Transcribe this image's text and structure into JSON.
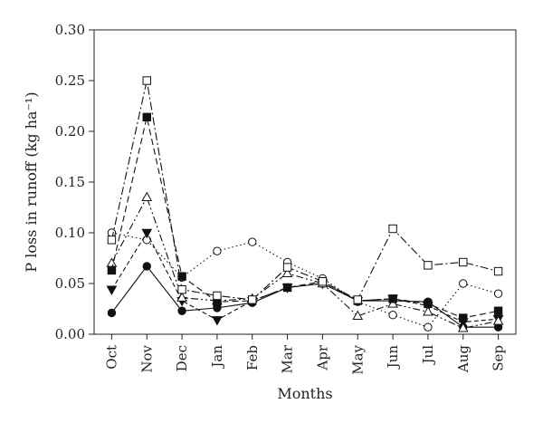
{
  "chart_data": {
    "type": "line",
    "xlabel": "Months",
    "ylabel": "P loss in runoff (kg ha⁻¹)",
    "ylim": [
      0,
      0.3
    ],
    "yticks": [
      "0.00",
      "0.05",
      "0.10",
      "0.15",
      "0.20",
      "0.25",
      "0.30"
    ],
    "categories": [
      "Oct",
      "Nov",
      "Dec",
      "Jan",
      "Feb",
      "Mar",
      "Apr",
      "May",
      "Jun",
      "Jul",
      "Aug",
      "Sep"
    ],
    "grid": false,
    "series": [
      {
        "marker": "filled-circle",
        "line": "solid",
        "values": [
          0.021,
          0.067,
          0.023,
          0.026,
          0.031,
          0.046,
          0.05,
          0.033,
          0.033,
          0.032,
          0.007,
          0.007
        ]
      },
      {
        "marker": "open-circle",
        "line": "dotted",
        "values": [
          0.1,
          0.093,
          0.056,
          0.082,
          0.091,
          0.071,
          0.055,
          0.032,
          0.019,
          0.007,
          0.05,
          0.04
        ]
      },
      {
        "marker": "filled-triangle-down",
        "line": "dashed-short",
        "values": [
          0.044,
          0.1,
          0.033,
          0.014,
          0.033,
          0.046,
          0.05,
          0.033,
          0.035,
          0.028,
          0.012,
          0.015
        ]
      },
      {
        "marker": "open-triangle",
        "line": "dash-dot-dot",
        "values": [
          0.07,
          0.135,
          0.036,
          0.033,
          0.035,
          0.06,
          0.05,
          0.018,
          0.03,
          0.022,
          0.006,
          0.013
        ]
      },
      {
        "marker": "filled-square",
        "line": "dashed",
        "values": [
          0.063,
          0.214,
          0.057,
          0.032,
          0.033,
          0.046,
          0.052,
          0.033,
          0.035,
          0.03,
          0.016,
          0.023
        ]
      },
      {
        "marker": "open-square",
        "line": "dash-dot",
        "values": [
          0.093,
          0.25,
          0.044,
          0.038,
          0.034,
          0.066,
          0.052,
          0.034,
          0.104,
          0.068,
          0.071,
          0.062
        ]
      }
    ]
  }
}
